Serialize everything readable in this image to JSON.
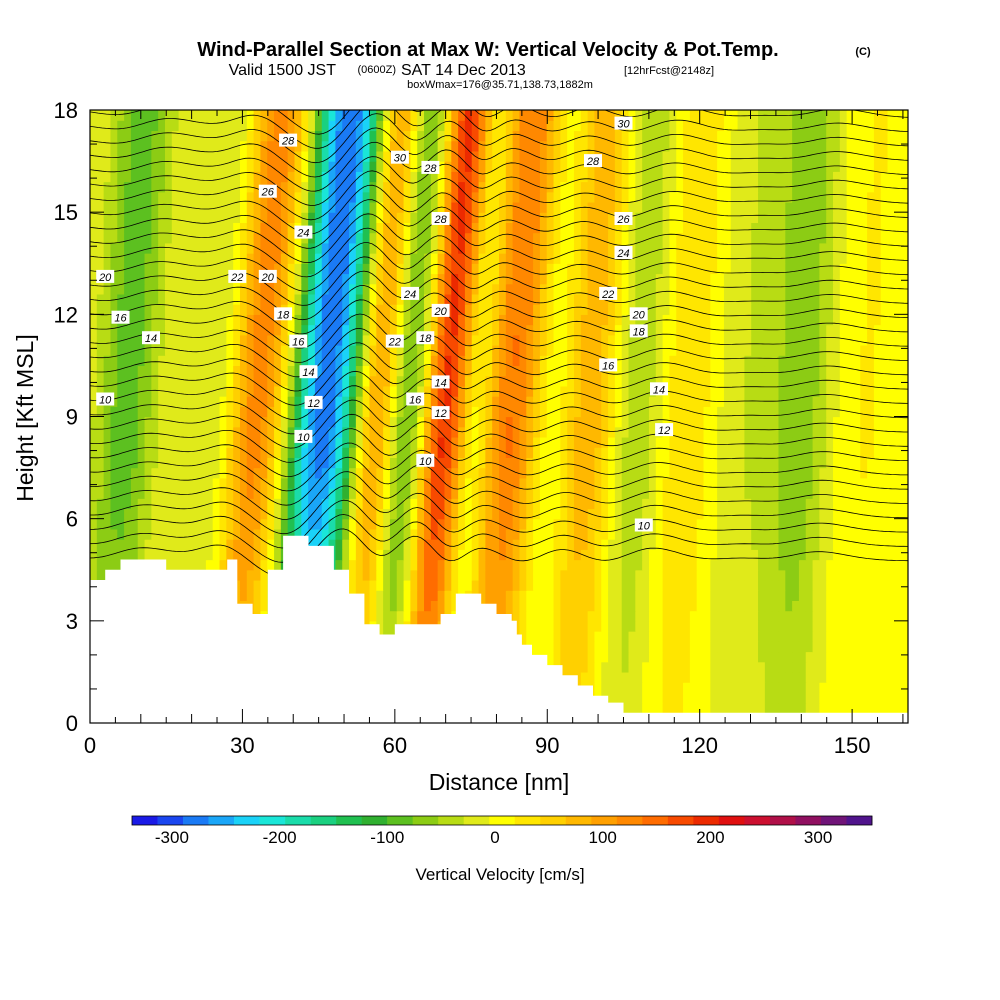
{
  "header": {
    "title": "Wind-Parallel Section at Max W: Vertical Velocity & Pot.Temp.",
    "copyright": "(C)",
    "valid_prefix": "Valid 1500 JST",
    "valid_z": "(0600Z)",
    "valid_date": "SAT 14 Dec 2013",
    "forecast_tag": "[12hrFcst@2148z]",
    "box_info": "boxWmax=176@35.71,138.73,1882m"
  },
  "chart_data": {
    "type": "heatmap",
    "title": "Wind-Parallel Section at Max W: Vertical Velocity & Pot.Temp.",
    "xlabel": "Distance [nm]",
    "ylabel": "Height [Kft MSL]",
    "xlim": [
      0,
      161
    ],
    "ylim": [
      0,
      18
    ],
    "x_ticks": [
      0,
      30,
      60,
      90,
      120,
      150
    ],
    "y_ticks": [
      0,
      3,
      6,
      9,
      12,
      15,
      18
    ],
    "grid": false,
    "colorbar": {
      "label": "Vertical Velocity [cm/s]",
      "tick_values": [
        -300,
        -200,
        -100,
        0,
        100,
        200,
        300
      ],
      "min": -337,
      "max": 350,
      "colors": [
        "#1a1ae6",
        "#1a46f0",
        "#1a7af5",
        "#1aa6f8",
        "#1ad2f8",
        "#1ae6d8",
        "#1adcaa",
        "#1ad080",
        "#20c050",
        "#30b030",
        "#5cc020",
        "#8ccc14",
        "#b8dc14",
        "#e0ea1a",
        "#ffff00",
        "#ffe600",
        "#ffd000",
        "#ffb800",
        "#ffa000",
        "#ff8800",
        "#ff6c00",
        "#f84a00",
        "#ec2a00",
        "#e01010",
        "#cc1030",
        "#b01048",
        "#901060",
        "#701478",
        "#50148c"
      ]
    },
    "terrain": [
      [
        0,
        4.2
      ],
      [
        3,
        4.2
      ],
      [
        3,
        4.5
      ],
      [
        6,
        4.5
      ],
      [
        6,
        4.8
      ],
      [
        15,
        4.8
      ],
      [
        15,
        4.5
      ],
      [
        27,
        4.5
      ],
      [
        27,
        4.8
      ],
      [
        29,
        4.8
      ],
      [
        29,
        3.5
      ],
      [
        32,
        3.5
      ],
      [
        32,
        3.2
      ],
      [
        35,
        3.2
      ],
      [
        35,
        4.5
      ],
      [
        38,
        4.5
      ],
      [
        38,
        5.5
      ],
      [
        43,
        5.5
      ],
      [
        43,
        5.2
      ],
      [
        48,
        5.2
      ],
      [
        48,
        4.5
      ],
      [
        51,
        4.5
      ],
      [
        51,
        3.8
      ],
      [
        54,
        3.8
      ],
      [
        54,
        2.9
      ],
      [
        57,
        2.9
      ],
      [
        57,
        2.6
      ],
      [
        60,
        2.6
      ],
      [
        60,
        2.9
      ],
      [
        69,
        2.9
      ],
      [
        69,
        3.2
      ],
      [
        72,
        3.2
      ],
      [
        72,
        3.8
      ],
      [
        77,
        3.8
      ],
      [
        77,
        3.5
      ],
      [
        80,
        3.5
      ],
      [
        80,
        3.2
      ],
      [
        83,
        3.2
      ],
      [
        83,
        3.0
      ],
      [
        84,
        3.0
      ],
      [
        84,
        2.6
      ],
      [
        85,
        2.6
      ],
      [
        85,
        2.3
      ],
      [
        87,
        2.3
      ],
      [
        87,
        2.0
      ],
      [
        90,
        2.0
      ],
      [
        90,
        1.7
      ],
      [
        93,
        1.7
      ],
      [
        93,
        1.4
      ],
      [
        96,
        1.4
      ],
      [
        96,
        1.1
      ],
      [
        99,
        1.1
      ],
      [
        99,
        0.8
      ],
      [
        102,
        0.8
      ],
      [
        102,
        0.6
      ],
      [
        105,
        0.6
      ],
      [
        105,
        0.3
      ],
      [
        161,
        0.3
      ]
    ],
    "velocity_features": [
      {
        "center_x": 7,
        "width": 6,
        "slope": -0.4,
        "w": -90
      },
      {
        "center_x": 25,
        "width": 5,
        "slope": -0.5,
        "w": -40
      },
      {
        "center_x": 33,
        "width": 6,
        "slope": -0.55,
        "w": 140
      },
      {
        "center_x": 39,
        "width": 4,
        "slope": -0.55,
        "w": 50
      },
      {
        "center_x": 44,
        "width": 7,
        "slope": -0.6,
        "w": -230
      },
      {
        "center_x": 50,
        "width": 6,
        "slope": -0.55,
        "w": -120
      },
      {
        "center_x": 56,
        "width": 5,
        "slope": -0.55,
        "w": 160
      },
      {
        "center_x": 63,
        "width": 5,
        "slope": -0.55,
        "w": -150
      },
      {
        "center_x": 70,
        "width": 6,
        "slope": -0.55,
        "w": 230
      },
      {
        "center_x": 75,
        "width": 4,
        "slope": -0.55,
        "w": -110
      },
      {
        "center_x": 83,
        "width": 6,
        "slope": -0.5,
        "w": 140
      },
      {
        "center_x": 91,
        "width": 5,
        "slope": -0.45,
        "w": -40
      },
      {
        "center_x": 98,
        "width": 6,
        "slope": -0.4,
        "w": 90
      },
      {
        "center_x": 108,
        "width": 6,
        "slope": -0.4,
        "w": -60
      },
      {
        "center_x": 117,
        "width": 7,
        "slope": -0.35,
        "w": 50
      },
      {
        "center_x": 128,
        "width": 8,
        "slope": -0.3,
        "w": -30
      },
      {
        "center_x": 140,
        "width": 6,
        "slope": -0.3,
        "w": -70
      },
      {
        "center_x": 152,
        "width": 8,
        "slope": -0.3,
        "w": 20
      }
    ],
    "contour_labels": [
      {
        "text": "28",
        "x": 39,
        "y": 17.1
      },
      {
        "text": "26",
        "x": 35,
        "y": 15.6
      },
      {
        "text": "24",
        "x": 42,
        "y": 14.4
      },
      {
        "text": "22",
        "x": 29,
        "y": 13.1
      },
      {
        "text": "20",
        "x": 35,
        "y": 13.1
      },
      {
        "text": "20",
        "x": 3,
        "y": 13.1
      },
      {
        "text": "16",
        "x": 6,
        "y": 11.9
      },
      {
        "text": "14",
        "x": 12,
        "y": 11.3
      },
      {
        "text": "18",
        "x": 38,
        "y": 12.0
      },
      {
        "text": "16",
        "x": 41,
        "y": 11.2
      },
      {
        "text": "14",
        "x": 43,
        "y": 10.3
      },
      {
        "text": "12",
        "x": 44,
        "y": 9.4
      },
      {
        "text": "10",
        "x": 42,
        "y": 8.4
      },
      {
        "text": "10",
        "x": 3,
        "y": 9.5
      },
      {
        "text": "30",
        "x": 61,
        "y": 16.6
      },
      {
        "text": "28",
        "x": 67,
        "y": 16.3
      },
      {
        "text": "28",
        "x": 69,
        "y": 14.8
      },
      {
        "text": "24",
        "x": 63,
        "y": 12.6
      },
      {
        "text": "20",
        "x": 69,
        "y": 12.1
      },
      {
        "text": "22",
        "x": 60,
        "y": 11.2
      },
      {
        "text": "18",
        "x": 66,
        "y": 11.3
      },
      {
        "text": "14",
        "x": 69,
        "y": 10.0
      },
      {
        "text": "16",
        "x": 64,
        "y": 9.5
      },
      {
        "text": "12",
        "x": 69,
        "y": 9.1
      },
      {
        "text": "10",
        "x": 66,
        "y": 7.7
      },
      {
        "text": "30",
        "x": 105,
        "y": 17.6
      },
      {
        "text": "28",
        "x": 99,
        "y": 16.5
      },
      {
        "text": "26",
        "x": 105,
        "y": 14.8
      },
      {
        "text": "24",
        "x": 105,
        "y": 13.8
      },
      {
        "text": "22",
        "x": 102,
        "y": 12.6
      },
      {
        "text": "20",
        "x": 108,
        "y": 12.0
      },
      {
        "text": "18",
        "x": 108,
        "y": 11.5
      },
      {
        "text": "16",
        "x": 102,
        "y": 10.5
      },
      {
        "text": "14",
        "x": 112,
        "y": 9.8
      },
      {
        "text": "12",
        "x": 113,
        "y": 8.6
      },
      {
        "text": "10",
        "x": 109,
        "y": 5.8
      }
    ]
  }
}
